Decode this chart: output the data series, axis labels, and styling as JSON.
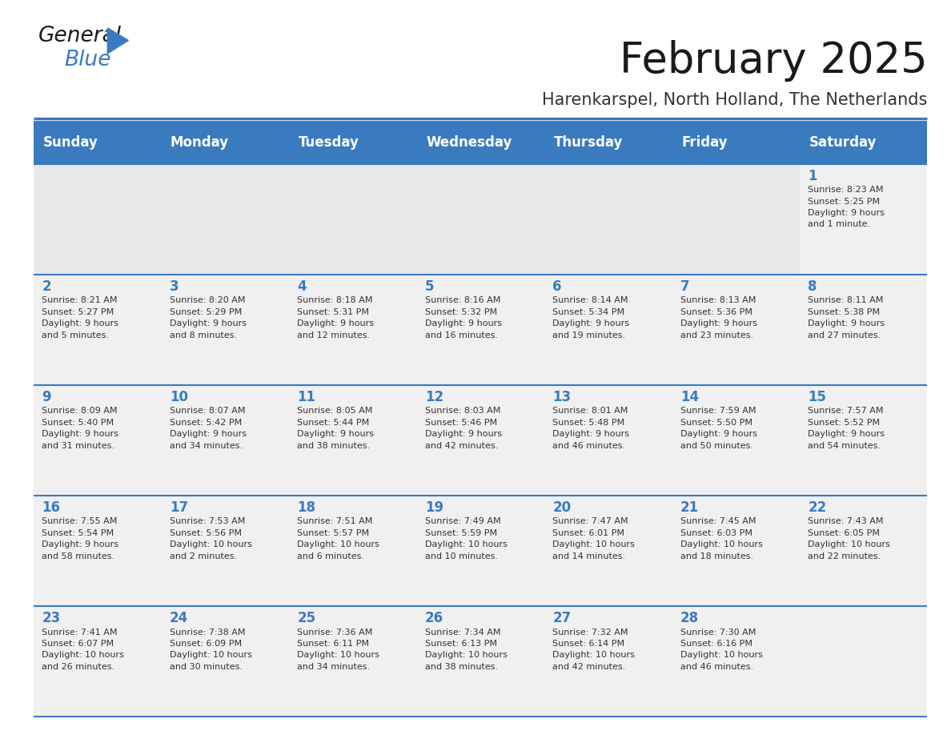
{
  "title": "February 2025",
  "subtitle": "Harenkarspel, North Holland, The Netherlands",
  "header_color": "#3a7abf",
  "header_text_color": "#ffffff",
  "cell_bg_color": "#f0f0f0",
  "empty_cell_bg_color": "#e8e8e8",
  "day_num_color": "#3a7abf",
  "cell_text_color": "#333333",
  "line_color": "#3a7abf",
  "days_of_week": [
    "Sunday",
    "Monday",
    "Tuesday",
    "Wednesday",
    "Thursday",
    "Friday",
    "Saturday"
  ],
  "weeks": [
    [
      {
        "day": "",
        "info": ""
      },
      {
        "day": "",
        "info": ""
      },
      {
        "day": "",
        "info": ""
      },
      {
        "day": "",
        "info": ""
      },
      {
        "day": "",
        "info": ""
      },
      {
        "day": "",
        "info": ""
      },
      {
        "day": "1",
        "info": "Sunrise: 8:23 AM\nSunset: 5:25 PM\nDaylight: 9 hours\nand 1 minute."
      }
    ],
    [
      {
        "day": "2",
        "info": "Sunrise: 8:21 AM\nSunset: 5:27 PM\nDaylight: 9 hours\nand 5 minutes."
      },
      {
        "day": "3",
        "info": "Sunrise: 8:20 AM\nSunset: 5:29 PM\nDaylight: 9 hours\nand 8 minutes."
      },
      {
        "day": "4",
        "info": "Sunrise: 8:18 AM\nSunset: 5:31 PM\nDaylight: 9 hours\nand 12 minutes."
      },
      {
        "day": "5",
        "info": "Sunrise: 8:16 AM\nSunset: 5:32 PM\nDaylight: 9 hours\nand 16 minutes."
      },
      {
        "day": "6",
        "info": "Sunrise: 8:14 AM\nSunset: 5:34 PM\nDaylight: 9 hours\nand 19 minutes."
      },
      {
        "day": "7",
        "info": "Sunrise: 8:13 AM\nSunset: 5:36 PM\nDaylight: 9 hours\nand 23 minutes."
      },
      {
        "day": "8",
        "info": "Sunrise: 8:11 AM\nSunset: 5:38 PM\nDaylight: 9 hours\nand 27 minutes."
      }
    ],
    [
      {
        "day": "9",
        "info": "Sunrise: 8:09 AM\nSunset: 5:40 PM\nDaylight: 9 hours\nand 31 minutes."
      },
      {
        "day": "10",
        "info": "Sunrise: 8:07 AM\nSunset: 5:42 PM\nDaylight: 9 hours\nand 34 minutes."
      },
      {
        "day": "11",
        "info": "Sunrise: 8:05 AM\nSunset: 5:44 PM\nDaylight: 9 hours\nand 38 minutes."
      },
      {
        "day": "12",
        "info": "Sunrise: 8:03 AM\nSunset: 5:46 PM\nDaylight: 9 hours\nand 42 minutes."
      },
      {
        "day": "13",
        "info": "Sunrise: 8:01 AM\nSunset: 5:48 PM\nDaylight: 9 hours\nand 46 minutes."
      },
      {
        "day": "14",
        "info": "Sunrise: 7:59 AM\nSunset: 5:50 PM\nDaylight: 9 hours\nand 50 minutes."
      },
      {
        "day": "15",
        "info": "Sunrise: 7:57 AM\nSunset: 5:52 PM\nDaylight: 9 hours\nand 54 minutes."
      }
    ],
    [
      {
        "day": "16",
        "info": "Sunrise: 7:55 AM\nSunset: 5:54 PM\nDaylight: 9 hours\nand 58 minutes."
      },
      {
        "day": "17",
        "info": "Sunrise: 7:53 AM\nSunset: 5:56 PM\nDaylight: 10 hours\nand 2 minutes."
      },
      {
        "day": "18",
        "info": "Sunrise: 7:51 AM\nSunset: 5:57 PM\nDaylight: 10 hours\nand 6 minutes."
      },
      {
        "day": "19",
        "info": "Sunrise: 7:49 AM\nSunset: 5:59 PM\nDaylight: 10 hours\nand 10 minutes."
      },
      {
        "day": "20",
        "info": "Sunrise: 7:47 AM\nSunset: 6:01 PM\nDaylight: 10 hours\nand 14 minutes."
      },
      {
        "day": "21",
        "info": "Sunrise: 7:45 AM\nSunset: 6:03 PM\nDaylight: 10 hours\nand 18 minutes."
      },
      {
        "day": "22",
        "info": "Sunrise: 7:43 AM\nSunset: 6:05 PM\nDaylight: 10 hours\nand 22 minutes."
      }
    ],
    [
      {
        "day": "23",
        "info": "Sunrise: 7:41 AM\nSunset: 6:07 PM\nDaylight: 10 hours\nand 26 minutes."
      },
      {
        "day": "24",
        "info": "Sunrise: 7:38 AM\nSunset: 6:09 PM\nDaylight: 10 hours\nand 30 minutes."
      },
      {
        "day": "25",
        "info": "Sunrise: 7:36 AM\nSunset: 6:11 PM\nDaylight: 10 hours\nand 34 minutes."
      },
      {
        "day": "26",
        "info": "Sunrise: 7:34 AM\nSunset: 6:13 PM\nDaylight: 10 hours\nand 38 minutes."
      },
      {
        "day": "27",
        "info": "Sunrise: 7:32 AM\nSunset: 6:14 PM\nDaylight: 10 hours\nand 42 minutes."
      },
      {
        "day": "28",
        "info": "Sunrise: 7:30 AM\nSunset: 6:16 PM\nDaylight: 10 hours\nand 46 minutes."
      },
      {
        "day": "",
        "info": ""
      }
    ]
  ],
  "logo_text_general": "General",
  "logo_text_blue": "Blue",
  "logo_color_general": "#1a1a1a",
  "logo_color_blue": "#3a7abf",
  "title_color": "#1a1a1a",
  "subtitle_color": "#333333"
}
